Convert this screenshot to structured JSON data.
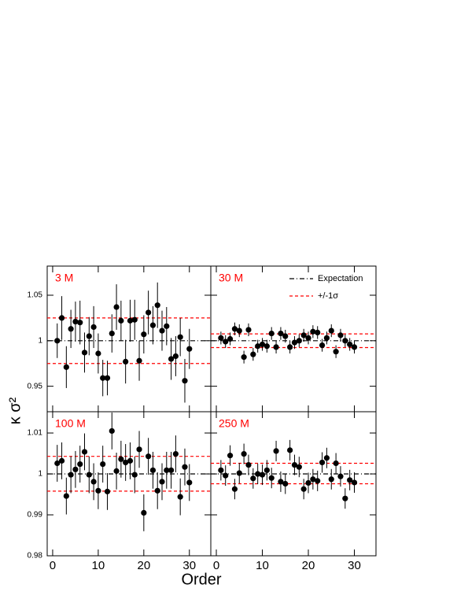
{
  "axis_labels": {
    "x": "Order",
    "y": "κ σ²"
  },
  "chart_data": [
    {
      "type": "scatter",
      "title": "3 M",
      "xlim": [
        -1.2,
        34.7
      ],
      "ylim": [
        0.922,
        1.082
      ],
      "xticks": [
        0,
        10,
        20,
        30
      ],
      "yticks": [
        0.95,
        1,
        1.05
      ],
      "xtick_labels": false,
      "ytick_labels": true,
      "color": "#000000",
      "x": [
        1,
        2,
        3,
        4,
        5,
        6,
        7,
        8,
        9,
        10,
        11,
        12,
        13,
        14,
        15,
        16,
        17,
        18,
        19,
        20,
        21,
        22,
        23,
        24,
        25,
        26,
        27,
        28,
        29,
        30
      ],
      "values": [
        1.0,
        1.025,
        0.971,
        1.013,
        1.021,
        1.02,
        0.987,
        1.005,
        1.015,
        0.986,
        0.959,
        0.959,
        1.008,
        1.037,
        1.022,
        0.977,
        1.022,
        1.023,
        0.978,
        1.007,
        1.031,
        1.017,
        1.039,
        1.011,
        1.016,
        0.98,
        0.983,
        1.004,
        0.956,
        0.991
      ],
      "errors": [
        0.019,
        0.024,
        0.023,
        0.021,
        0.022,
        0.024,
        0.022,
        0.021,
        0.023,
        0.022,
        0.02,
        0.019,
        0.021,
        0.025,
        0.022,
        0.024,
        0.023,
        0.022,
        0.022,
        0.021,
        0.024,
        0.021,
        0.025,
        0.022,
        0.021,
        0.023,
        0.022,
        0.021,
        0.024,
        0.022
      ],
      "lines": [
        {
          "value": 1,
          "style": "dashdot",
          "color": "#000000"
        },
        {
          "values": [
            1.025,
            0.975
          ],
          "style": "dashed",
          "color": "#ff0000"
        }
      ]
    },
    {
      "type": "scatter",
      "title": "30 M",
      "xlim": [
        -1.2,
        34.7
      ],
      "ylim": [
        0.922,
        1.082
      ],
      "xticks": [
        0,
        10,
        20,
        30
      ],
      "yticks": [
        0.95,
        1,
        1.05
      ],
      "xtick_labels": false,
      "ytick_labels": false,
      "color": "#000000",
      "x": [
        1,
        2,
        3,
        4,
        5,
        6,
        7,
        8,
        9,
        10,
        11,
        12,
        13,
        14,
        15,
        16,
        17,
        18,
        19,
        20,
        21,
        22,
        23,
        24,
        25,
        26,
        27,
        28,
        29,
        30
      ],
      "values": [
        1.003,
        0.999,
        1.002,
        1.013,
        1.011,
        0.982,
        1.012,
        0.985,
        0.994,
        0.996,
        0.994,
        1.008,
        0.993,
        1.008,
        1.005,
        0.993,
        0.998,
        1.0,
        1.006,
        1.003,
        1.01,
        1.009,
        0.995,
        1.003,
        1.011,
        0.988,
        1.006,
        1.0,
        0.996,
        0.993
      ],
      "errors": [
        0.007,
        0.007,
        0.007,
        0.007,
        0.007,
        0.007,
        0.007,
        0.007,
        0.007,
        0.007,
        0.007,
        0.007,
        0.007,
        0.007,
        0.007,
        0.007,
        0.007,
        0.007,
        0.007,
        0.007,
        0.007,
        0.007,
        0.007,
        0.007,
        0.007,
        0.007,
        0.007,
        0.007,
        0.007,
        0.007
      ],
      "lines": [
        {
          "name": "Expectation",
          "value": 1,
          "style": "dashdot",
          "color": "#000000"
        },
        {
          "name": "+/-1σ",
          "values": [
            1.0075,
            0.9925
          ],
          "style": "dashed",
          "color": "#ff0000"
        }
      ],
      "legend": "top-right"
    },
    {
      "type": "scatter",
      "title": "100 M",
      "xlim": [
        -1.2,
        34.7
      ],
      "ylim": [
        0.98,
        1.0152
      ],
      "xticks": [
        0,
        10,
        20,
        30
      ],
      "yticks": [
        0.98,
        0.99,
        1,
        1.01
      ],
      "xtick_labels": true,
      "ytick_labels": true,
      "color": "#000000",
      "x": [
        1,
        2,
        3,
        4,
        5,
        6,
        7,
        8,
        9,
        10,
        11,
        12,
        13,
        14,
        15,
        16,
        17,
        18,
        19,
        20,
        21,
        22,
        23,
        24,
        25,
        26,
        27,
        28,
        29,
        30
      ],
      "values": [
        1.0026,
        1.0032,
        0.9946,
        0.9998,
        1.0011,
        1.0024,
        1.0054,
        0.9998,
        0.9981,
        0.9959,
        1.0024,
        0.9957,
        1.0105,
        1.0007,
        1.0036,
        1.0028,
        1.0032,
        0.9998,
        1.006,
        0.9905,
        1.0043,
        1.0009,
        0.9959,
        0.9981,
        1.0009,
        1.0009,
        1.0049,
        0.9944,
        1.0017,
        0.9979
      ],
      "errors": [
        0.0045,
        0.0045,
        0.0045,
        0.0045,
        0.0045,
        0.0045,
        0.0045,
        0.0045,
        0.0045,
        0.0045,
        0.0045,
        0.0045,
        0.0045,
        0.0045,
        0.0045,
        0.0045,
        0.0045,
        0.0045,
        0.0045,
        0.0045,
        0.0045,
        0.0045,
        0.0045,
        0.0045,
        0.0045,
        0.0045,
        0.0045,
        0.0045,
        0.0045,
        0.0045
      ],
      "lines": [
        {
          "value": 1,
          "style": "dashdot",
          "color": "#000000"
        },
        {
          "values": [
            1.0043,
            0.9958
          ],
          "style": "dashed",
          "color": "#ff0000"
        }
      ]
    },
    {
      "type": "scatter",
      "title": "250 M",
      "xlim": [
        -1.2,
        34.7
      ],
      "ylim": [
        0.98,
        1.0152
      ],
      "xticks": [
        0,
        10,
        20,
        30
      ],
      "yticks": [
        0.98,
        0.99,
        1,
        1.01
      ],
      "xtick_labels": true,
      "ytick_labels": false,
      "color": "#000000",
      "x": [
        1,
        2,
        3,
        4,
        5,
        6,
        7,
        8,
        9,
        10,
        11,
        12,
        13,
        14,
        15,
        16,
        17,
        18,
        19,
        20,
        21,
        22,
        23,
        24,
        25,
        26,
        27,
        28,
        29,
        30
      ],
      "values": [
        1.0009,
        0.9996,
        1.0045,
        0.9963,
        1.0002,
        1.0049,
        1.0022,
        0.9989,
        1.0,
        0.9998,
        1.0009,
        0.999,
        1.0056,
        0.9981,
        0.9976,
        1.0058,
        1.0022,
        1.0017,
        0.9963,
        0.9978,
        0.9987,
        0.9983,
        1.0028,
        1.0039,
        0.9987,
        1.0026,
        0.9994,
        0.994,
        0.9985,
        0.9979
      ],
      "errors": [
        0.0025,
        0.0025,
        0.0025,
        0.0025,
        0.0025,
        0.0025,
        0.0025,
        0.0025,
        0.0025,
        0.0025,
        0.0025,
        0.0025,
        0.0025,
        0.0025,
        0.0025,
        0.0025,
        0.0025,
        0.0025,
        0.0025,
        0.0025,
        0.0025,
        0.0025,
        0.0025,
        0.0025,
        0.0025,
        0.0025,
        0.0025,
        0.0025,
        0.0025,
        0.0025
      ],
      "lines": [
        {
          "value": 1,
          "style": "dashdot",
          "color": "#000000"
        },
        {
          "values": [
            1.0026,
            0.9976
          ],
          "style": "dashed",
          "color": "#ff0000"
        }
      ]
    }
  ]
}
